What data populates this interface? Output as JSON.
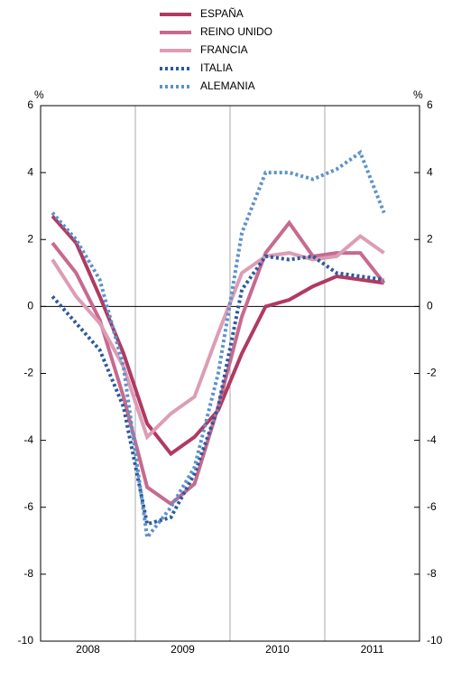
{
  "chart_data": {
    "type": "line",
    "y_unit": "%",
    "x": [
      2008.125,
      2008.375,
      2008.625,
      2008.875,
      2009.125,
      2009.375,
      2009.625,
      2009.875,
      2010.125,
      2010.375,
      2010.625,
      2010.875,
      2011.125,
      2011.375,
      2011.625
    ],
    "xlim": [
      2008,
      2012
    ],
    "xticks": [
      {
        "value": 2008.5,
        "label": "2008"
      },
      {
        "value": 2009.5,
        "label": "2009"
      },
      {
        "value": 2010.5,
        "label": "2010"
      },
      {
        "value": 2011.5,
        "label": "2011"
      }
    ],
    "xgrid": [
      2009,
      2010,
      2011
    ],
    "ylim": [
      -10,
      6
    ],
    "yticks": [
      -10,
      -8,
      -6,
      -4,
      -2,
      0,
      2,
      4,
      6
    ],
    "series": [
      {
        "name": "ESPAÑA",
        "color": "#b03a62",
        "dash": "solid",
        "values": [
          2.7,
          1.9,
          0.3,
          -1.4,
          -3.5,
          -4.4,
          -3.9,
          -3.1,
          -1.4,
          0.0,
          0.2,
          0.6,
          0.9,
          0.8,
          0.7
        ]
      },
      {
        "name": "REINO UNIDO",
        "color": "#c76a8f",
        "dash": "solid",
        "values": [
          1.9,
          1.0,
          -0.4,
          -2.7,
          -5.4,
          -5.9,
          -5.3,
          -3.0,
          -0.3,
          1.6,
          2.5,
          1.5,
          1.6,
          1.6,
          0.7
        ]
      },
      {
        "name": "FRANCIA",
        "color": "#dc9db5",
        "dash": "solid",
        "values": [
          1.4,
          0.3,
          -0.5,
          -1.8,
          -3.9,
          -3.2,
          -2.7,
          -0.8,
          1.0,
          1.5,
          1.6,
          1.4,
          1.5,
          2.1,
          1.6
        ]
      },
      {
        "name": "ITALIA",
        "color": "#2c5a9c",
        "dash": "dotted",
        "values": [
          0.3,
          -0.5,
          -1.3,
          -3.0,
          -6.5,
          -6.3,
          -5.0,
          -3.0,
          0.5,
          1.5,
          1.4,
          1.5,
          1.0,
          0.9,
          0.8
        ]
      },
      {
        "name": "ALEMANIA",
        "color": "#5d92c9",
        "dash": "dotted",
        "values": [
          2.8,
          2.0,
          0.8,
          -1.8,
          -6.9,
          -6.0,
          -4.8,
          -2.0,
          2.2,
          4.0,
          4.0,
          3.8,
          4.1,
          4.6,
          2.8
        ]
      }
    ]
  }
}
